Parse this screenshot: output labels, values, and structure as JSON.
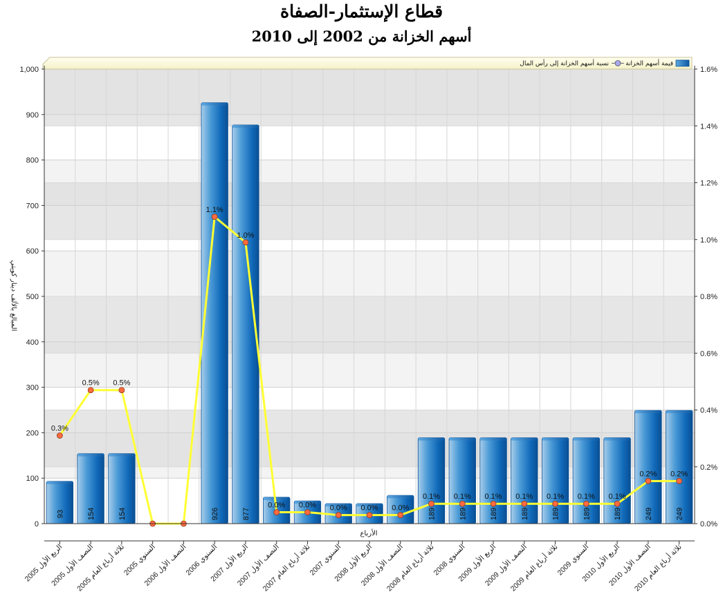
{
  "chart_data": {
    "type": "bar",
    "title": "قطاع الإستثمار-الصفاة",
    "subtitle": "أسهم الخزانة من 2002 إلى 2010",
    "xlabel": "الأرباع",
    "ylabel": "المبالغ بالألف دينار كويتي",
    "ylim": [
      0,
      1000
    ],
    "y2lim": [
      0,
      0.016
    ],
    "grid": true,
    "legend_position": "top-right",
    "categories": [
      "الربع الأول 2005",
      "النصف الأول 2005",
      "ثلاثة أرباع العام 2005",
      "السنوي 2005",
      "النصف الأول 2006",
      "السنوي 2006",
      "الربع الأول 2007",
      "النصف الأول 2007",
      "ثلاثة أرباع العام 2007",
      "السنوي 2007",
      "الربع الأول 2008",
      "النصف الأول 2008",
      "ثلاثة أرباع العام 2008",
      "السنوي 2008",
      "الربع الأول 2009",
      "النصف الأول 2009",
      "ثلاثة أرباع العام 2009",
      "السنوي 2009",
      "الربع الأول 2010",
      "النصف الأول 2010",
      "ثلاثة أرباع العام 2010"
    ],
    "y_ticks": [
      "0",
      "100",
      "200",
      "300",
      "400",
      "500",
      "600",
      "700",
      "800",
      "900",
      "1,000"
    ],
    "y2_ticks": [
      "0.0%",
      "0.2%",
      "0.4%",
      "0.6%",
      "0.8%",
      "1.0%",
      "1.2%",
      "1.4%",
      "1.6%"
    ],
    "series": [
      {
        "name": "قيمة أسهم الخزانة",
        "type": "bar",
        "axis": "left",
        "color": "#1e78c8",
        "values": [
          93,
          154,
          154,
          0,
          0,
          926,
          877,
          58,
          50,
          44,
          44,
          62,
          189,
          189,
          189,
          189,
          189,
          189,
          189,
          249,
          249
        ],
        "labels": [
          "93",
          "154",
          "154",
          "",
          "",
          "926",
          "877",
          "",
          "",
          "",
          "",
          "",
          "189",
          "189",
          "189",
          "189",
          "189",
          "189",
          "189",
          "249",
          "249"
        ]
      },
      {
        "name": "نسبة أسهم الخزانة إلى رأس المال",
        "type": "line",
        "axis": "right",
        "color": "#ffff33",
        "marker_color": "#ff6a40",
        "values": [
          0.0031,
          0.0047,
          0.0047,
          0,
          0,
          0.0108,
          0.0099,
          0.0004,
          0.0004,
          0.0003,
          0.0003,
          0.0003,
          0.0007,
          0.0007,
          0.0007,
          0.0007,
          0.0007,
          0.0007,
          0.0007,
          0.0015,
          0.0015
        ],
        "labels": [
          "0.3%",
          "0.5%",
          "0.5%",
          "",
          "",
          "1.1%",
          "1.0%",
          "0.0%",
          "0.0%",
          "0.0%",
          "0.0%",
          "0.0%",
          "0.1%",
          "0.1%",
          "0.1%",
          "0.1%",
          "0.1%",
          "0.1%",
          "0.1%",
          "0.2%",
          "0.2%"
        ]
      }
    ]
  }
}
